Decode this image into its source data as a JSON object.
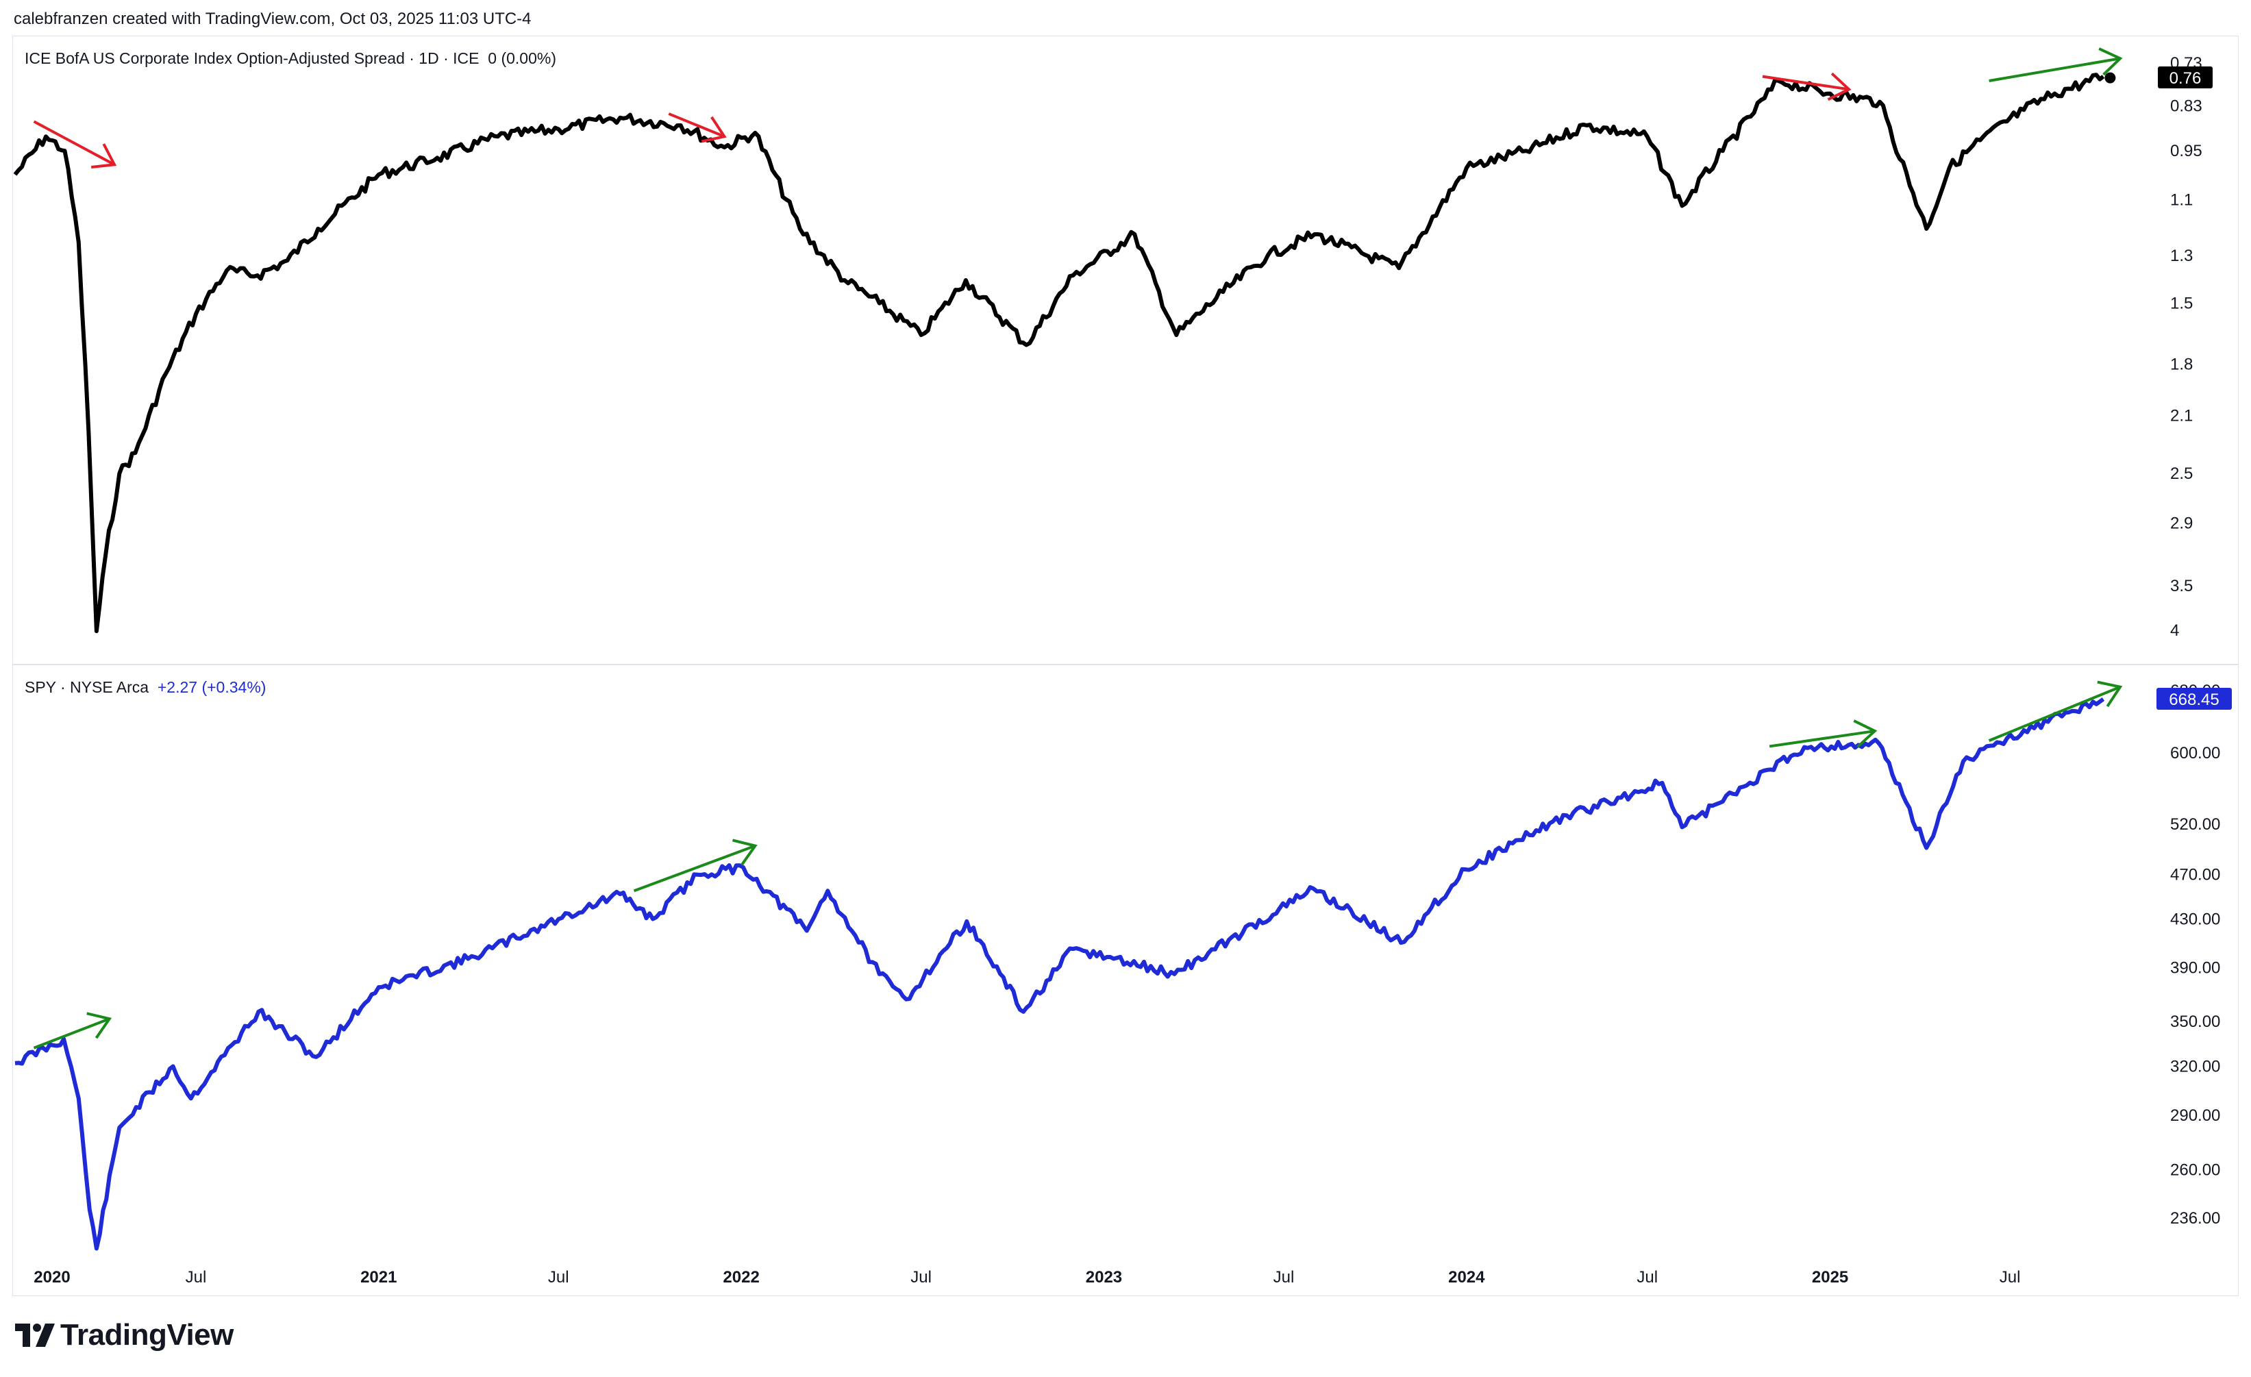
{
  "header": {
    "attribution": "calebfranzen created with TradingView.com, Oct 03, 2025 11:03 UTC-4"
  },
  "top_pane": {
    "title": "ICE BofA US Corporate Index Option-Adjusted Spread · 1D · ICE",
    "change": "0 (0.00%)",
    "last_value_label": "0.76",
    "scale_ticks": [
      "0.73",
      "0.83",
      "0.95",
      "1.1",
      "1.3",
      "1.5",
      "1.8",
      "2.1",
      "2.5",
      "2.9",
      "3.5",
      "4"
    ],
    "line_color": "#000000",
    "label_bg": "#000000"
  },
  "bottom_pane": {
    "title": "SPY · NYSE Arca",
    "change": "+2.27 (+0.34%)",
    "last_value_label": "668.45",
    "scale_ticks": [
      "680.00",
      "600.00",
      "520.00",
      "470.00",
      "430.00",
      "390.00",
      "350.00",
      "320.00",
      "290.00",
      "260.00",
      "236.00"
    ],
    "line_color": "#1e2bd6",
    "label_bg": "#1e2bd6"
  },
  "time_axis": {
    "labels": [
      {
        "text": "2020",
        "bold": true
      },
      {
        "text": "Jul",
        "bold": false
      },
      {
        "text": "2021",
        "bold": true
      },
      {
        "text": "Jul",
        "bold": false
      },
      {
        "text": "2022",
        "bold": true
      },
      {
        "text": "Jul",
        "bold": false
      },
      {
        "text": "2023",
        "bold": true
      },
      {
        "text": "Jul",
        "bold": false
      },
      {
        "text": "2024",
        "bold": true
      },
      {
        "text": "Jul",
        "bold": false
      },
      {
        "text": "2025",
        "bold": true
      },
      {
        "text": "Jul",
        "bold": false
      }
    ]
  },
  "logo": {
    "text": "TradingView"
  },
  "colors": {
    "red_arrow": "#e3202a",
    "green_arrow": "#1a8a1a",
    "grid": "#e0e3eb"
  },
  "chart_data": [
    {
      "type": "line",
      "scale": "log-inverted",
      "series": [
        {
          "name": "ICE BofA US Corporate Index Option-Adjusted Spread",
          "x": [
            "2020-01-01",
            "2020-02-01",
            "2020-02-20",
            "2020-03-05",
            "2020-03-15",
            "2020-03-23",
            "2020-04-01",
            "2020-04-15",
            "2020-05-01",
            "2020-06-01",
            "2020-07-01",
            "2020-08-01",
            "2020-09-01",
            "2020-10-01",
            "2020-11-01",
            "2021-01-01",
            "2021-03-01",
            "2021-05-01",
            "2021-07-01",
            "2021-09-01",
            "2021-11-01",
            "2021-12-15",
            "2022-01-15",
            "2022-03-01",
            "2022-04-15",
            "2022-05-20",
            "2022-07-01",
            "2022-08-15",
            "2022-10-15",
            "2022-12-01",
            "2023-02-01",
            "2023-03-15",
            "2023-05-01",
            "2023-06-15",
            "2023-08-01",
            "2023-10-25",
            "2024-01-01",
            "2024-03-01",
            "2024-05-01",
            "2024-07-01",
            "2024-08-05",
            "2024-09-15",
            "2024-11-10",
            "2025-01-01",
            "2025-02-20",
            "2025-04-08",
            "2025-05-01",
            "2025-06-01",
            "2025-07-15",
            "2025-08-15",
            "2025-10-03"
          ],
          "values": [
            1.02,
            0.91,
            0.95,
            1.25,
            2.2,
            4.01,
            3.2,
            2.5,
            2.35,
            1.85,
            1.55,
            1.36,
            1.38,
            1.32,
            1.2,
            1.02,
            0.97,
            0.91,
            0.89,
            0.86,
            0.88,
            0.94,
            0.9,
            1.2,
            1.4,
            1.5,
            1.65,
            1.4,
            1.7,
            1.38,
            1.22,
            1.65,
            1.45,
            1.3,
            1.22,
            1.35,
            1.0,
            0.95,
            0.88,
            0.91,
            1.12,
            0.95,
            0.77,
            0.8,
            0.82,
            1.2,
            1.0,
            0.92,
            0.84,
            0.8,
            0.76
          ]
        }
      ],
      "yticks": [
        0.73,
        0.83,
        0.95,
        1.1,
        1.3,
        1.5,
        1.8,
        2.1,
        2.5,
        2.9,
        3.5,
        4
      ],
      "ylim": [
        0.71,
        4.2
      ]
    },
    {
      "type": "line",
      "scale": "log",
      "series": [
        {
          "name": "SPY",
          "x": [
            "2020-01-01",
            "2020-02-19",
            "2020-03-05",
            "2020-03-16",
            "2020-03-23",
            "2020-04-15",
            "2020-06-08",
            "2020-06-26",
            "2020-09-02",
            "2020-10-30",
            "2021-01-01",
            "2021-04-01",
            "2021-07-01",
            "2021-09-01",
            "2021-10-04",
            "2021-11-18",
            "2022-01-03",
            "2022-03-08",
            "2022-03-29",
            "2022-05-20",
            "2022-06-16",
            "2022-08-16",
            "2022-10-12",
            "2022-12-01",
            "2023-03-13",
            "2023-07-31",
            "2023-10-27",
            "2023-12-31",
            "2024-03-28",
            "2024-07-16",
            "2024-08-05",
            "2024-12-06",
            "2025-02-19",
            "2025-04-08",
            "2025-05-15",
            "2025-07-15",
            "2025-10-03"
          ],
          "values": [
            322,
            338,
            300,
            240,
            222,
            283,
            320,
            300,
            357,
            326,
            375,
            397,
            430,
            452,
            430,
            470,
            477,
            420,
            455,
            385,
            366,
            428,
            357,
            405,
            385,
            457,
            410,
            475,
            523,
            565,
            517,
            607,
            612,
            496,
            590,
            628,
            668.45
          ]
        }
      ],
      "yticks": [
        236,
        260,
        290,
        320,
        350,
        390,
        430,
        470,
        520,
        600,
        680
      ],
      "ylim": [
        220,
        690
      ]
    }
  ]
}
